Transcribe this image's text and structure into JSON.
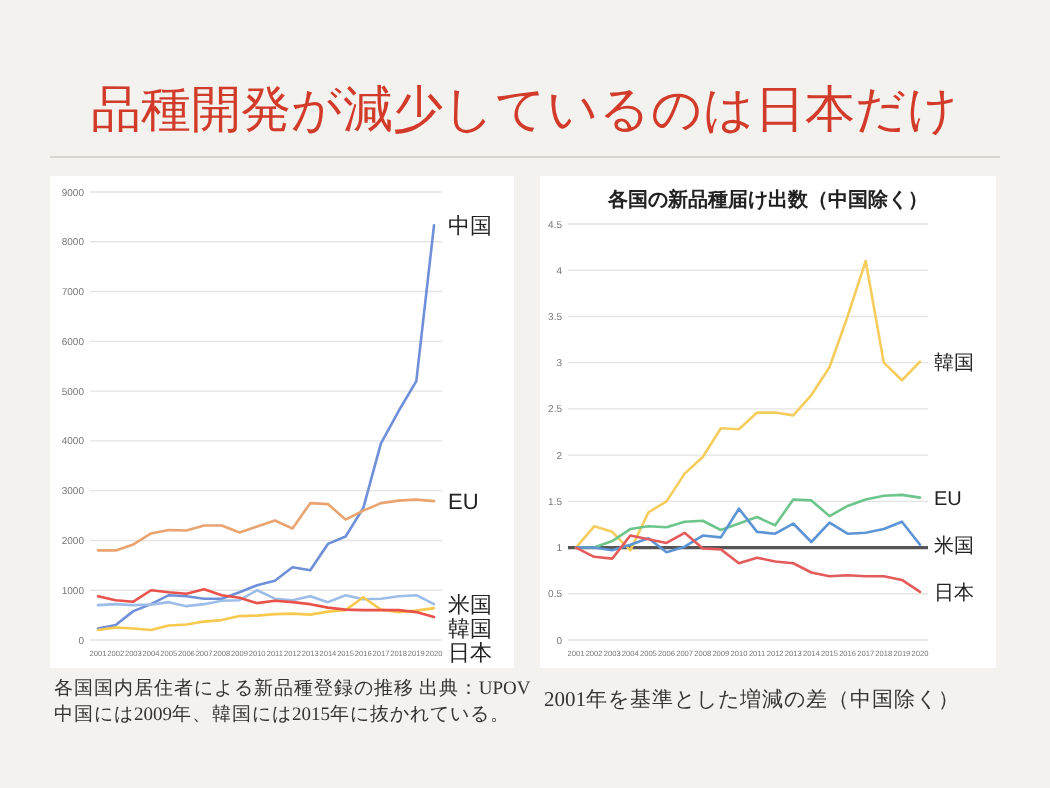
{
  "chart_data": [
    {
      "type": "line",
      "title": "品種開発が減少しているのは日本だけ",
      "categories": [
        "2001",
        "2002",
        "2003",
        "2004",
        "2005",
        "2006",
        "2007",
        "2008",
        "2009",
        "2010",
        "2011",
        "2012",
        "2013",
        "2014",
        "2015",
        "2016",
        "2017",
        "2018",
        "2019",
        "2020"
      ],
      "series": [
        {
          "name": "中国",
          "color": "#6f8fd8",
          "values": [
            230,
            300,
            580,
            720,
            900,
            880,
            830,
            830,
            960,
            1100,
            1190,
            1460,
            1400,
            1930,
            2080,
            2650,
            3950,
            4600,
            5200,
            8330
          ]
        },
        {
          "name": "EU",
          "color": "#e9a46f",
          "values": [
            1800,
            1800,
            1920,
            2140,
            2210,
            2200,
            2300,
            2300,
            2160,
            2280,
            2400,
            2240,
            2750,
            2730,
            2420,
            2600,
            2750,
            2800,
            2820,
            2790
          ]
        },
        {
          "name": "米国",
          "color": "#9dbde9",
          "values": [
            700,
            720,
            700,
            710,
            760,
            680,
            720,
            790,
            800,
            1000,
            830,
            800,
            880,
            760,
            900,
            820,
            830,
            880,
            900,
            720
          ]
        },
        {
          "name": "韓国",
          "color": "#f7c94f",
          "values": [
            200,
            250,
            230,
            200,
            290,
            310,
            370,
            400,
            480,
            490,
            520,
            530,
            510,
            570,
            600,
            860,
            610,
            560,
            590,
            640
          ]
        },
        {
          "name": "日本",
          "color": "#e8524a",
          "values": [
            880,
            800,
            770,
            1000,
            960,
            930,
            1020,
            900,
            850,
            740,
            790,
            760,
            720,
            650,
            610,
            600,
            600,
            600,
            560,
            460
          ]
        }
      ],
      "ylim": [
        0,
        9000
      ],
      "yticks": [
        0,
        1000,
        2000,
        3000,
        4000,
        5000,
        6000,
        7000,
        8000,
        9000
      ],
      "grid": "y",
      "annotations": [
        "各国国内居住者による新品種登録の推移 出典：UPOV",
        "中国には2009年、韓国には2015年に抜かれている。"
      ]
    },
    {
      "type": "line",
      "title": "各国の新品種届け出数（中国除く）",
      "categories": [
        "2001",
        "2002",
        "2003",
        "2004",
        "2005",
        "2006",
        "2007",
        "2008",
        "2009",
        "2010",
        "2011",
        "2012",
        "2013",
        "2014",
        "2015",
        "2016",
        "2017",
        "2018",
        "2019",
        "2020"
      ],
      "series": [
        {
          "name": "韓国",
          "color": "#f5cd5c",
          "values": [
            1.0,
            1.23,
            1.17,
            0.97,
            1.38,
            1.5,
            1.8,
            1.98,
            2.29,
            2.28,
            2.46,
            2.46,
            2.43,
            2.65,
            2.95,
            3.5,
            4.1,
            3.0,
            2.81,
            3.01
          ]
        },
        {
          "name": "EU",
          "color": "#6cc58a",
          "values": [
            1.0,
            1.0,
            1.07,
            1.2,
            1.23,
            1.22,
            1.28,
            1.29,
            1.19,
            1.26,
            1.33,
            1.24,
            1.52,
            1.51,
            1.34,
            1.45,
            1.52,
            1.56,
            1.57,
            1.54
          ]
        },
        {
          "name": "米国",
          "color": "#5b95d6",
          "values": [
            1.0,
            1.0,
            0.97,
            1.03,
            1.1,
            0.95,
            1.01,
            1.13,
            1.11,
            1.42,
            1.17,
            1.15,
            1.26,
            1.06,
            1.27,
            1.15,
            1.16,
            1.2,
            1.28,
            1.03
          ]
        },
        {
          "name": "日本",
          "color": "#e45b5b",
          "values": [
            1.0,
            0.9,
            0.88,
            1.13,
            1.09,
            1.05,
            1.16,
            0.99,
            0.98,
            0.83,
            0.89,
            0.85,
            0.83,
            0.73,
            0.69,
            0.7,
            0.69,
            0.69,
            0.65,
            0.52
          ]
        }
      ],
      "ylim": [
        0,
        4.5
      ],
      "yticks": [
        0,
        0.5,
        1,
        1.5,
        2,
        2.5,
        3,
        3.5,
        4,
        4.5
      ],
      "grid": "y",
      "ref_lines": [
        {
          "axis": "y",
          "value": 1,
          "color": "#555555"
        }
      ],
      "annotations": [
        "2001年を基準とした増減の差（中国除く）"
      ]
    }
  ]
}
